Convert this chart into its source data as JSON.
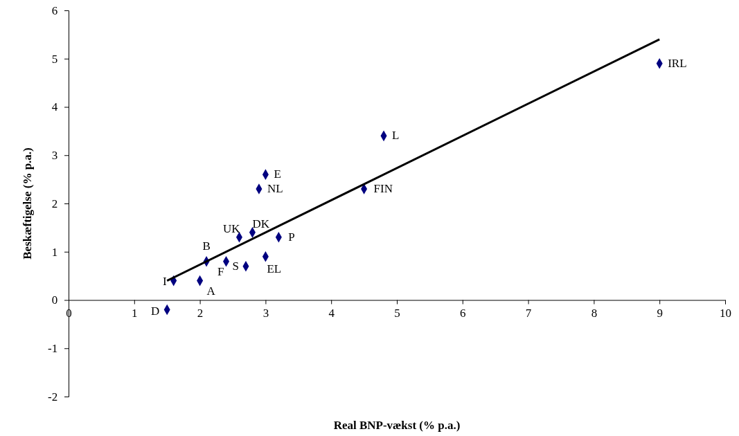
{
  "chart_data": {
    "type": "scatter",
    "xlabel": "Real BNP-vækst (% p.a.)",
    "ylabel": "Beskæftigelse (% p.a.)",
    "xlim": [
      0,
      10
    ],
    "xticks": [
      0,
      1,
      2,
      3,
      4,
      5,
      6,
      7,
      8,
      9,
      10
    ],
    "ylim": [
      -2,
      6
    ],
    "yticks": [
      -2,
      -1,
      0,
      1,
      2,
      3,
      4,
      5,
      6
    ],
    "grid": false,
    "series": [
      {
        "color": "#000080",
        "marker": "diamond",
        "x": [
          9.0,
          4.8,
          3.0,
          2.9,
          4.5,
          2.8,
          2.6,
          3.2,
          2.1,
          2.7,
          3.0,
          2.4,
          1.6,
          2.0,
          1.5
        ],
        "values": [
          4.9,
          3.4,
          2.6,
          2.3,
          2.3,
          1.4,
          1.3,
          1.3,
          0.8,
          0.7,
          0.9,
          0.8,
          0.4,
          0.4,
          -0.2
        ]
      },
      {
        "type": "line",
        "color": "#000000",
        "line_style": "solid",
        "marker": "none",
        "x": [
          1.5,
          9.0
        ],
        "values": [
          0.4,
          5.4
        ]
      }
    ],
    "annotations": [
      {
        "text": "IRL",
        "x": 9.0,
        "y": 4.9
      },
      {
        "text": "L",
        "x": 4.8,
        "y": 3.4
      },
      {
        "text": "E",
        "x": 3.0,
        "y": 2.6
      },
      {
        "text": "NL",
        "x": 2.9,
        "y": 2.3
      },
      {
        "text": "FIN",
        "x": 4.5,
        "y": 2.3
      },
      {
        "text": "DK",
        "x": 2.8,
        "y": 1.4
      },
      {
        "text": "UK",
        "x": 2.6,
        "y": 1.3
      },
      {
        "text": "P",
        "x": 3.2,
        "y": 1.3
      },
      {
        "text": "B",
        "x": 2.1,
        "y": 0.8
      },
      {
        "text": "S",
        "x": 2.7,
        "y": 0.7
      },
      {
        "text": "EL",
        "x": 3.0,
        "y": 0.9
      },
      {
        "text": "F",
        "x": 2.4,
        "y": 0.8
      },
      {
        "text": "I",
        "x": 1.6,
        "y": 0.4
      },
      {
        "text": "A",
        "x": 2.0,
        "y": 0.4
      },
      {
        "text": "D",
        "x": 1.5,
        "y": -0.2
      }
    ]
  }
}
